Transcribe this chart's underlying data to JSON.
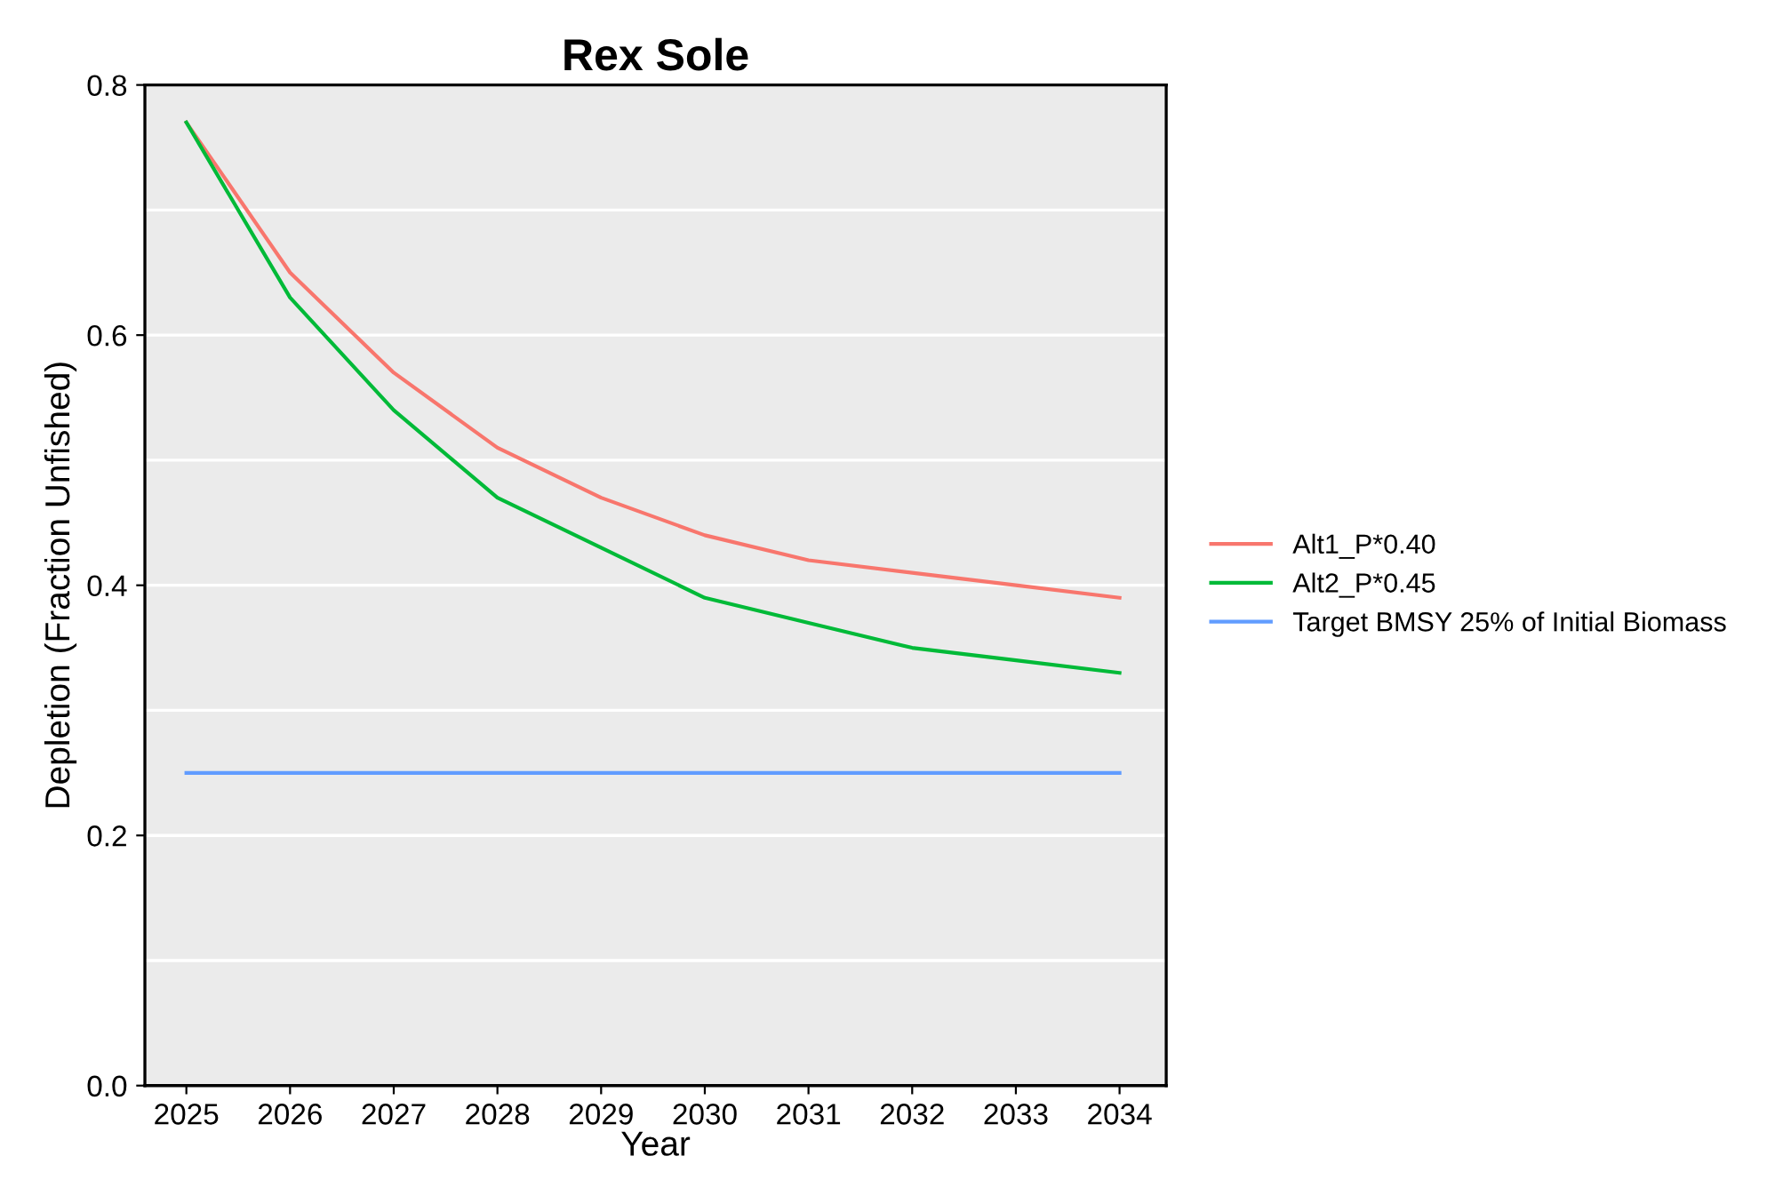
{
  "chart_data": {
    "type": "line",
    "title": "Rex Sole",
    "xlabel": "Year",
    "ylabel": "Depletion (Fraction Unfished)",
    "x": [
      2025,
      2026,
      2027,
      2028,
      2029,
      2030,
      2031,
      2032,
      2033,
      2034
    ],
    "series": [
      {
        "name": "Alt1_P*0.40",
        "color": "#f8766d",
        "values": [
          0.77,
          0.65,
          0.57,
          0.51,
          0.47,
          0.44,
          0.42,
          0.41,
          0.4,
          0.39
        ]
      },
      {
        "name": "Alt2_P*0.45",
        "color": "#00ba38",
        "values": [
          0.77,
          0.63,
          0.54,
          0.47,
          0.43,
          0.39,
          0.37,
          0.35,
          0.34,
          0.33
        ]
      },
      {
        "name": "Target BMSY 25% of Initial Biomass",
        "color": "#619cff",
        "values": [
          0.25,
          0.25,
          0.25,
          0.25,
          0.25,
          0.25,
          0.25,
          0.25,
          0.25,
          0.25
        ]
      }
    ],
    "xlim": [
      2024.6,
      2034.45
    ],
    "ylim": [
      0,
      0.8
    ],
    "xticks": [
      2025,
      2026,
      2027,
      2028,
      2029,
      2030,
      2031,
      2032,
      2033,
      2034
    ],
    "yticks": [
      {
        "value": 0,
        "label": "0.0"
      },
      {
        "value": 0.1,
        "label": null
      },
      0.2,
      {
        "value": 0.3,
        "label": null
      },
      0.4,
      {
        "value": 0.5,
        "label": null
      },
      0.6,
      {
        "value": 0.7,
        "label": null
      },
      0.8
    ],
    "grid": "y",
    "legend": "right",
    "marker": "none",
    "line_style": "solid"
  }
}
